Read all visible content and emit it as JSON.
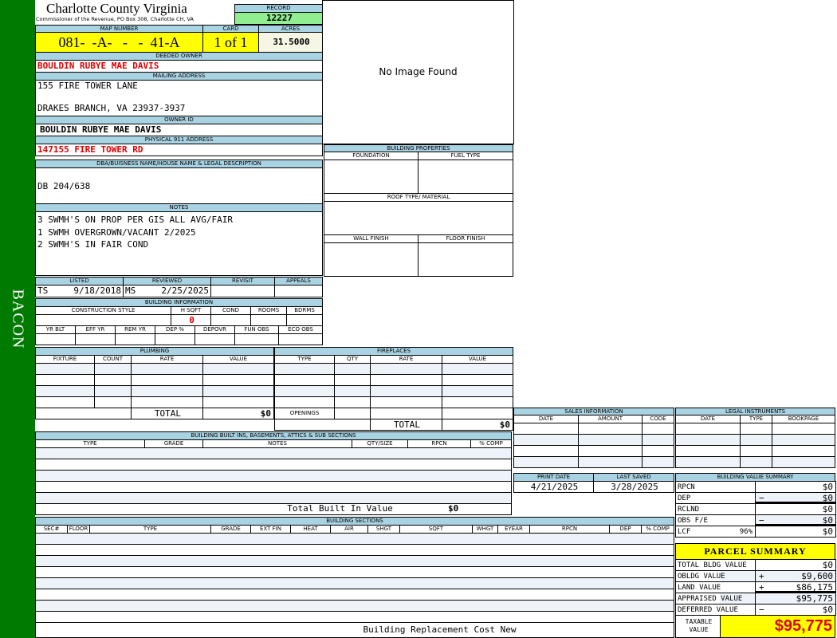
{
  "sidebar": {
    "label": "BACON",
    "color": "#007a00"
  },
  "header": {
    "title": "Charlotte County Virginia",
    "subtitle": "Commissioner of the Revenue, PO Box 308, Charlotte CH, VA",
    "record_label": "RECORD",
    "record": "12227"
  },
  "parcel": {
    "map_label": "MAP NUMBER",
    "map": "081-  -A-   -   -  41-A",
    "card_label": "CARD",
    "card": "1 of 1",
    "acres_label": "ACRES",
    "acres": "31.5000"
  },
  "owner": {
    "deeded_label": "DEEDED OWNER",
    "deeded": "BOULDIN RUBYE MAE DAVIS",
    "mailing_label": "MAILING ADDRESS",
    "mail1": "155 FIRE TOWER LANE",
    "mail2": "",
    "mail3": "DRAKES BRANCH, VA 23937-3937",
    "id_label": "OWNER ID",
    "id": "BOULDIN RUBYE MAE DAVIS",
    "phys_label": "PHYSICAL 911 ADDRESS",
    "phys": "147155 FIRE TOWER RD"
  },
  "image": {
    "text": "No Image Found"
  },
  "dba": {
    "label": "DBA/BUISNESS NAME/HOUSE NAME & LEGAL DESCRIPTION",
    "value": "DB 204/638"
  },
  "notes": {
    "label": "NOTES",
    "lines": [
      "3 SWMH'S ON PROP PER GIS ALL AVG/FAIR",
      "1 SWMH OVERGROWN/VACANT 2/2025",
      "2 SWMH'S IN FAIR COND"
    ]
  },
  "listed": {
    "listed_label": "LISTED",
    "listed_by": "TS",
    "listed_date": "9/18/2018",
    "reviewed_label": "REVIEWED",
    "reviewed_by": "MS",
    "reviewed_date": "2/25/2025",
    "revisit_label": "REVISIT",
    "appeals_label": "APPEALS"
  },
  "bldg_info": {
    "label": "BUILDING INFORMATION",
    "cols1": [
      "CONSTRUCTION STYLE",
      "H SQFT",
      "COND",
      "ROOMS",
      "BDRMS"
    ],
    "hsqft": "0",
    "cols2": [
      "YR BLT",
      "EFF YR",
      "REM YR",
      "DEP %",
      "DEPOVR",
      "FUN OBS",
      "ECO OBS"
    ]
  },
  "bldg_props": {
    "label": "BUILDING PROPERTIES",
    "foundation": "FOUNDATION",
    "fuel": "FUEL TYPE",
    "roof": "ROOF TYPE/ MATERIAL",
    "wall": "WALL FINISH",
    "floor": "FLOOR FINISH"
  },
  "plumbing": {
    "label": "PLUMBING",
    "cols": [
      "FIXTURE",
      "COUNT",
      "RATE",
      "VALUE"
    ],
    "total_label": "TOTAL",
    "total": "$0"
  },
  "fireplaces": {
    "label": "FIREPLACES",
    "cols": [
      "TYPE",
      "QTY",
      "RATE",
      "VALUE"
    ],
    "openings": "OPENINGS",
    "total_label": "TOTAL",
    "total": "$0"
  },
  "builtins": {
    "label": "BUILDING BUILT INS, BASEMENTS, ATTICS & SUB SECTIONS",
    "cols": [
      "TYPE",
      "GRADE",
      "NOTES",
      "QTY/SIZE",
      "RPCN",
      "% COMP"
    ],
    "total_label": "Total Built In Value",
    "total": "$0"
  },
  "sections": {
    "label": "BUILDING SECTIONS",
    "cols": [
      "SEC#",
      "FLOOR",
      "TYPE",
      "GRADE",
      "EXT FIN",
      "HEAT",
      "AIR",
      "SHGT",
      "SQFT",
      "WHGT",
      "EYEAR",
      "RPCN",
      "DEP",
      "% COMP"
    ],
    "footer": "Building Replacement Cost New"
  },
  "sales": {
    "label": "SALES INFORMATION",
    "cols": [
      "DATE",
      "AMOUNT",
      "CODE"
    ]
  },
  "legal": {
    "label": "LEGAL INSTRUMENTS",
    "cols": [
      "DATE",
      "TYPE",
      "BOOKPAGE"
    ]
  },
  "dates": {
    "print_label": "PRINT DATE",
    "print": "4/21/2025",
    "saved_label": "LAST SAVED",
    "saved": "3/28/2025"
  },
  "bvs": {
    "label": "BUILDING VALUE SUMMARY",
    "rows": [
      {
        "label": "RPCN",
        "sign": "",
        "value": "$0"
      },
      {
        "label": "DEP",
        "sign": "−",
        "value": "$0"
      },
      {
        "label": "RCLND",
        "sign": "",
        "value": "$0"
      },
      {
        "label": "OBS F/E",
        "sign": "−",
        "value": "$0"
      },
      {
        "label": "LCF",
        "pct": "96%",
        "sign": "",
        "value": "$0"
      }
    ]
  },
  "summary": {
    "label": "PARCEL SUMMARY",
    "rows": [
      {
        "label": "TOTAL BLDG VALUE",
        "sign": "",
        "value": "$0"
      },
      {
        "label": "OBLDG VALUE",
        "sign": "+",
        "value": "$9,600"
      },
      {
        "label": "LAND VALUE",
        "sign": "+",
        "value": "$86,175"
      },
      {
        "label": "APPRAISED VALUE",
        "sign": "",
        "value": "$95,775"
      },
      {
        "label": "DEFERRED VALUE",
        "sign": "−",
        "value": "$0"
      }
    ],
    "taxable_label": "TAXABLE VALUE",
    "taxable": "$95,775"
  },
  "colors": {
    "header": "#a9d3e3",
    "record": "#90ee90",
    "highlight": "#ffff00",
    "alert": "#e00000"
  }
}
